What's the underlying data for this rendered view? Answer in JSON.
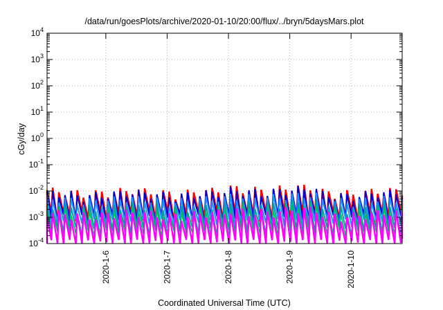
{
  "chart_data": {
    "type": "line",
    "title": "/data/run/goesPlots/archive/2020-01-10/20:00/flux/../bryn/5daysMars.plot",
    "xlabel": "Coordinated Universal Time (UTC)",
    "ylabel": "cGy/day",
    "yscale": "log",
    "ylim": [
      0.0001,
      10000
    ],
    "xlim": [
      "2020-01-05 01:00",
      "2020-01-10 20:00"
    ],
    "y_ticks": [
      {
        "base": "10",
        "exp": "-4"
      },
      {
        "base": "10",
        "exp": "-3"
      },
      {
        "base": "10",
        "exp": "-2"
      },
      {
        "base": "10",
        "exp": "-1"
      },
      {
        "base": "10",
        "exp": "0"
      },
      {
        "base": "10",
        "exp": "1"
      },
      {
        "base": "10",
        "exp": "2"
      },
      {
        "base": "10",
        "exp": "3"
      },
      {
        "base": "10",
        "exp": "4"
      }
    ],
    "x_ticks": [
      "2020-1-6",
      "2020-1-7",
      "2020-1-8",
      "2020-1-9",
      "2020-1-10"
    ],
    "x_tick_values": [
      "2020-01-06 00:00",
      "2020-01-07 00:00",
      "2020-01-08 00:00",
      "2020-01-09 00:00",
      "2020-01-10 00:00"
    ],
    "grid": true,
    "cycle_hours": 2.4,
    "series": [
      {
        "color": "#ff0000",
        "peak": 0.009,
        "trough": 0.0011,
        "width": 2.4
      },
      {
        "color": "#0000cc",
        "peak": 0.0075,
        "trough": 0.0009,
        "width": 2.0
      },
      {
        "color": "#1e90ff",
        "peak": 0.0045,
        "trough": 0.0006,
        "width": 2.0
      },
      {
        "color": "#00a0a0",
        "peak": 0.0025,
        "trough": 0.0003,
        "width": 2.0
      },
      {
        "color": "#00c060",
        "peak": 0.0018,
        "trough": 0.00022,
        "width": 1.6
      },
      {
        "color": "#ff00ff",
        "peak": 0.0013,
        "trough": 0.0001,
        "width": 2.4
      }
    ]
  }
}
